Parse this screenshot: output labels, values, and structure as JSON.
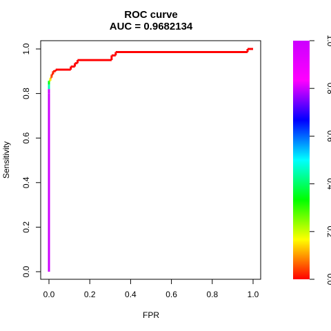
{
  "chart_data": {
    "type": "line",
    "title": "ROC curve",
    "subtitle": "AUC = 0.9682134",
    "xlabel": "FPR",
    "ylabel": "Sensitivity",
    "xlim": [
      0,
      1
    ],
    "ylim": [
      0,
      1
    ],
    "x_ticks": [
      "0.0",
      "0.2",
      "0.4",
      "0.6",
      "0.8",
      "1.0"
    ],
    "y_ticks": [
      "0.0",
      "0.2",
      "0.4",
      "0.6",
      "0.8",
      "1.0"
    ],
    "grid": false,
    "legend": "none",
    "colorbar": {
      "range": [
        0,
        1
      ],
      "ticks": [
        "0.0",
        "0.2",
        "0.4",
        "0.6",
        "0.8",
        "1.0"
      ],
      "colormap": "rainbow red-to-magenta"
    },
    "series": [
      {
        "x": [
          0,
          0,
          0,
          0,
          0,
          0.007,
          0.007,
          0.013,
          0.013,
          0.02,
          0.02,
          0.033,
          0.033,
          0.107,
          0.107,
          0.127,
          0.127,
          0.14,
          0.14,
          0.307,
          0.307,
          0.327,
          0.327,
          0.973,
          0.973,
          1.0
        ],
        "y": [
          0,
          0.8,
          0.82,
          0.84,
          0.857,
          0.857,
          0.871,
          0.871,
          0.886,
          0.886,
          0.9,
          0.9,
          0.907,
          0.907,
          0.921,
          0.921,
          0.936,
          0.936,
          0.95,
          0.95,
          0.971,
          0.971,
          0.986,
          0.986,
          1.0,
          1.0
        ],
        "threshold": [
          1.0,
          1.0,
          0.45,
          0.35,
          0.25,
          0.15,
          0.08,
          0.05,
          0.02,
          0.02,
          0.02,
          0.0,
          0.0,
          0.0,
          0.0,
          0.0,
          0.0,
          0.0,
          0.0,
          0.0,
          0.0,
          0.0,
          0.0,
          0.0,
          0.0,
          0.0
        ]
      }
    ]
  }
}
